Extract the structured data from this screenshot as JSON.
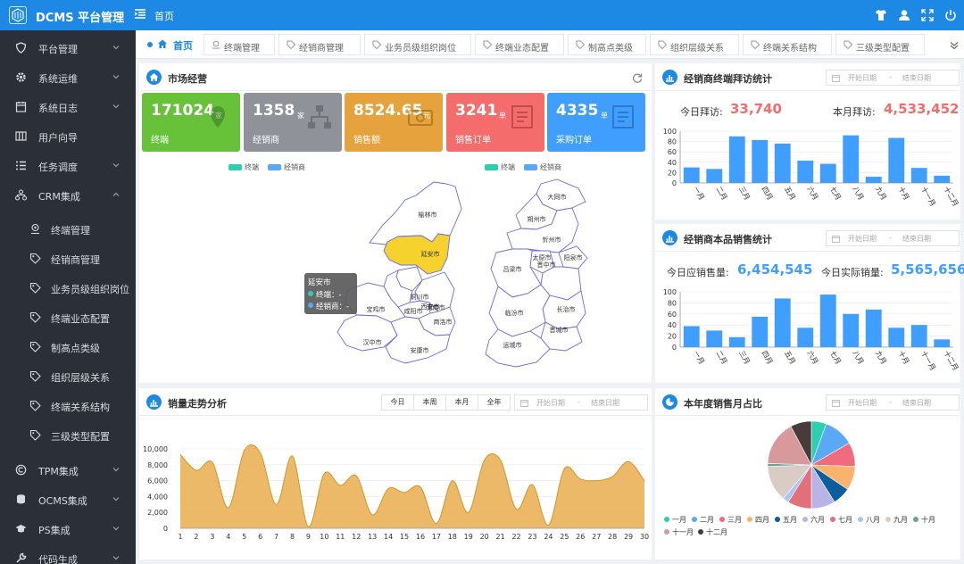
{
  "app": {
    "title": "DCMS 平台管理",
    "breadcrumb": "首页"
  },
  "sidebar": {
    "items": [
      {
        "label": "平台管理",
        "icon": "shield-icon",
        "has_children": true
      },
      {
        "label": "系统运维",
        "icon": "gear-icon",
        "has_children": true
      },
      {
        "label": "系统日志",
        "icon": "calendar-icon",
        "has_children": true
      },
      {
        "label": "用户向导",
        "icon": "columns-icon",
        "has_children": false
      },
      {
        "label": "任务调度",
        "icon": "list-icon",
        "has_children": true
      },
      {
        "label": "CRM集成",
        "icon": "sitemap-icon",
        "has_children": true,
        "expanded": true
      },
      {
        "label": "TPM集成",
        "icon": "copyright-icon",
        "has_children": true
      },
      {
        "label": "OCMS集成",
        "icon": "database-icon",
        "has_children": true
      },
      {
        "label": "PS集成",
        "icon": "graduation-cap-icon",
        "has_children": true
      },
      {
        "label": "代码生成",
        "icon": "wrench-icon",
        "has_children": true
      }
    ],
    "crm_children": [
      "终端管理",
      "经销商管理",
      "业务员级组织岗位",
      "终端业态配置",
      "制高点类级",
      "组织层级关系",
      "终端关系结构",
      "三级类型配置"
    ]
  },
  "tabs": [
    "首页",
    "终端管理",
    "经销商管理",
    "业务员级组织岗位",
    "终端业态配置",
    "制高点类级",
    "组织层级关系",
    "终端关系结构",
    "三级类型配置"
  ],
  "market": {
    "title": "市场经营",
    "stats": [
      {
        "value": "171024",
        "unit": "家",
        "label": "终端",
        "color": "#67c23a",
        "icon": "map-pin-icon"
      },
      {
        "value": "1358",
        "unit": "家",
        "label": "经销商",
        "color": "#8f9399",
        "icon": "org-chart-icon"
      },
      {
        "value": "8524.65",
        "unit": "元",
        "label": "销售额",
        "color": "#e6a23c",
        "icon": "money-icon"
      },
      {
        "value": "3241",
        "unit": "单",
        "label": "销售订单",
        "color": "#f56c6c",
        "icon": "receipt-icon"
      },
      {
        "value": "4335",
        "unit": "单",
        "label": "采购订单",
        "color": "#409eff",
        "icon": "receipt-icon"
      }
    ],
    "legend": [
      "终端",
      "经销商"
    ],
    "legend_colors": [
      "#2ecfae",
      "#5aa9f5"
    ],
    "map_left_cities": [
      "榆林市",
      "延安市",
      "铜川市",
      "宝鸡市",
      "咸阳市",
      "西安市",
      "渭南市",
      "汉中市",
      "商洛市",
      "安康市"
    ],
    "map_right_cities": [
      "大同市",
      "朔州市",
      "忻州市",
      "太原市",
      "阳泉市",
      "晋中市",
      "吕梁市",
      "长治市",
      "临汾市",
      "晋城市",
      "运城市"
    ],
    "highlight_color": "#f5d22e",
    "tooltip": {
      "title": "延安市",
      "row1": "终端：-",
      "row2": "经销商：-"
    }
  },
  "visits": {
    "title": "经销商终端拜访统计",
    "start_placeholder": "开始日期",
    "end_placeholder": "结束日期",
    "today_label": "今日拜访:",
    "today_value": "33,740",
    "month_label": "本月拜访:",
    "month_value": "4,533,452",
    "value_color": "#f56c6c"
  },
  "product_sales": {
    "title": "经销商本品销售统计",
    "start_placeholder": "开始日期",
    "end_placeholder": "结束日期",
    "expected_label": "今日应销售量:",
    "expected_value": "6,454,545",
    "actual_label": "今日实际销量:",
    "actual_value": "5,565,656",
    "value_color": "#409eff"
  },
  "trend": {
    "title": "销量走势分析",
    "buttons": [
      "今日",
      "本周",
      "本月",
      "全年"
    ],
    "start_placeholder": "开始日期",
    "end_placeholder": "结束日期"
  },
  "yearly": {
    "title": "本年度销售月占比",
    "start_placeholder": "开始日期",
    "end_placeholder": "结束日期"
  },
  "chart_data": [
    {
      "type": "bar",
      "categories": [
        "一月",
        "二月",
        "三月",
        "四月",
        "五月",
        "六月",
        "七月",
        "八月",
        "九月",
        "十月",
        "十一月",
        "十二月"
      ],
      "values": [
        30,
        27,
        90,
        83,
        76,
        43,
        37,
        92,
        12,
        87,
        29,
        14
      ],
      "ylim": [
        0,
        100
      ],
      "yticks": [
        0,
        20,
        40,
        60,
        80,
        100
      ],
      "color": "#409eff"
    },
    {
      "type": "bar",
      "categories": [
        "一月",
        "二月",
        "三月",
        "四月",
        "五月",
        "六月",
        "七月",
        "八月",
        "九月",
        "十月",
        "十一月",
        "十二月"
      ],
      "values": [
        38,
        30,
        18,
        55,
        88,
        35,
        95,
        60,
        68,
        35,
        40,
        14
      ],
      "ylim": [
        0,
        100
      ],
      "yticks": [
        0,
        20,
        40,
        60,
        80,
        100
      ],
      "color": "#409eff"
    },
    {
      "type": "area",
      "x": [
        1,
        2,
        3,
        4,
        5,
        6,
        7,
        8,
        9,
        10,
        11,
        12,
        13,
        14,
        15,
        16,
        17,
        18,
        19,
        20,
        21,
        22,
        23,
        24,
        25,
        26,
        27,
        28,
        29,
        30
      ],
      "values": [
        9300,
        7300,
        8300,
        2600,
        9800,
        9500,
        3000,
        9100,
        200,
        6900,
        5400,
        6600,
        1700,
        5000,
        4500,
        5200,
        600,
        6000,
        2000,
        8600,
        8600,
        2400,
        5500,
        400,
        7500,
        6200,
        6000,
        6500,
        8400,
        6000
      ],
      "ylim": [
        0,
        10000
      ],
      "yticks": [
        "0",
        "2,000",
        "4,000",
        "6,000",
        "8,000",
        "10,000"
      ],
      "color": "#e8ad4c"
    },
    {
      "type": "pie",
      "categories": [
        "一月",
        "二月",
        "三月",
        "四月",
        "五月",
        "六月",
        "七月",
        "八月",
        "九月",
        "十月",
        "十一月",
        "十二月"
      ],
      "values": [
        5,
        10,
        8,
        8,
        6,
        8,
        8,
        2,
        12,
        1,
        15,
        7
      ],
      "colors": [
        "#2ecfae",
        "#5aa9f5",
        "#f06b7e",
        "#f9b36c",
        "#0b5e9e",
        "#b9b4e6",
        "#e26f7a",
        "#a7c5f5",
        "#d8ccc4",
        "#6f9f91",
        "#d7999c",
        "#4a3b3b"
      ]
    }
  ]
}
